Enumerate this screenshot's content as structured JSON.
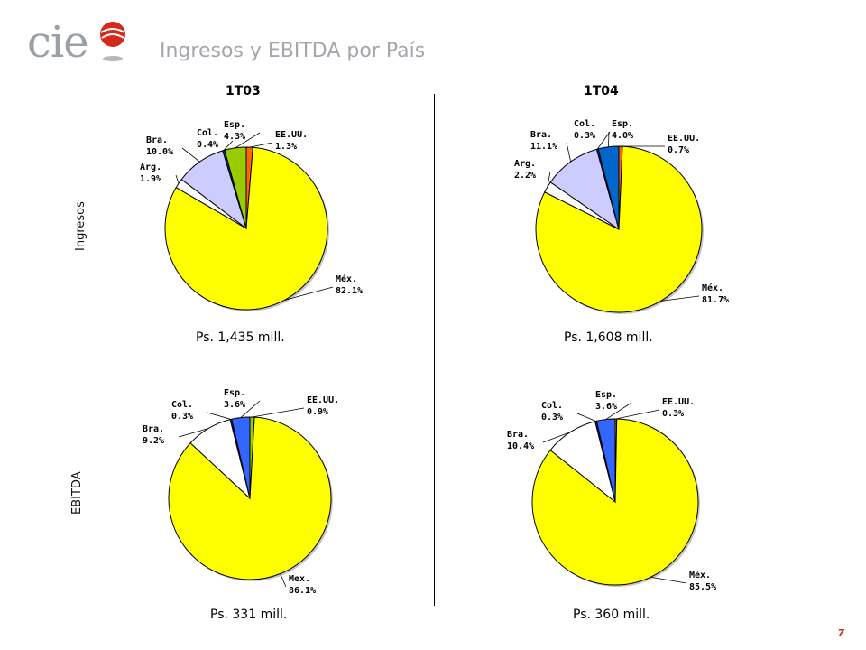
{
  "logo": {
    "text": "cie"
  },
  "page": {
    "title": "Ingresos y EBITDA por País",
    "number": "7"
  },
  "columns": [
    "1T03",
    "1T04"
  ],
  "rows": [
    "Ingresos",
    "EBITDA"
  ],
  "colors": {
    "Méx.": "#ffff00",
    "Mex.": "#ffff00",
    "EE.UU.": "#ff6600",
    "Esp.": "#99cc00",
    "Col.": "#003399",
    "Bra.": "#ccccff",
    "Arg.": "#ffffff"
  },
  "chart_data": [
    {
      "type": "pie",
      "title": "1T03",
      "row": "Ingresos",
      "total_label": "Ps. 1,435 mill.",
      "labels": [
        "EE.UU.",
        "Méx.",
        "Arg.",
        "Bra.",
        "Col.",
        "Esp."
      ],
      "values": [
        1.3,
        82.1,
        1.9,
        10.0,
        0.4,
        4.3
      ],
      "value_labels": [
        "1.3%",
        "82.1%",
        "1.9%",
        "10.0%",
        "0.4%",
        "4.3%"
      ],
      "colors": [
        "#ff6600",
        "#ffff00",
        "#ffffff",
        "#ccccff",
        "#003399",
        "#99cc00"
      ]
    },
    {
      "type": "pie",
      "title": "1T04",
      "row": "Ingresos",
      "total_label": "Ps. 1,608 mill.",
      "labels": [
        "EE.UU.",
        "Méx.",
        "Arg.",
        "Bra.",
        "Col.",
        "Esp."
      ],
      "values": [
        0.7,
        81.7,
        2.2,
        11.1,
        0.3,
        4.0
      ],
      "value_labels": [
        "0.7%",
        "81.7%",
        "2.2%",
        "11.1%",
        "0.3%",
        "4.0%"
      ],
      "colors": [
        "#ff6600",
        "#ffff00",
        "#ffffff",
        "#ccccff",
        "#003399",
        "#0066cc"
      ]
    },
    {
      "type": "pie",
      "title": "1T03",
      "row": "EBITDA",
      "total_label": "Ps. 331 mill.",
      "labels": [
        "EE.UU.",
        "Mex.",
        "Bra.",
        "Col.",
        "Esp."
      ],
      "values": [
        0.9,
        86.1,
        9.2,
        0.3,
        3.6
      ],
      "value_labels": [
        "0.9%",
        "86.1%",
        "9.2%",
        "0.3%",
        "3.6%"
      ],
      "colors": [
        "#99cc00",
        "#ffff00",
        "#ffffff",
        "#003399",
        "#3366ff"
      ]
    },
    {
      "type": "pie",
      "title": "1T04",
      "row": "EBITDA",
      "total_label": "Ps. 360 mill.",
      "labels": [
        "EE.UU.",
        "Méx.",
        "Bra.",
        "Col.",
        "Esp."
      ],
      "values": [
        0.3,
        85.5,
        10.4,
        0.3,
        3.6
      ],
      "value_labels": [
        "0.3%",
        "85.5%",
        "10.4%",
        "0.3%",
        "3.6%"
      ],
      "colors": [
        "#ff6600",
        "#ffff00",
        "#ffffff",
        "#003399",
        "#3366ff"
      ]
    }
  ]
}
